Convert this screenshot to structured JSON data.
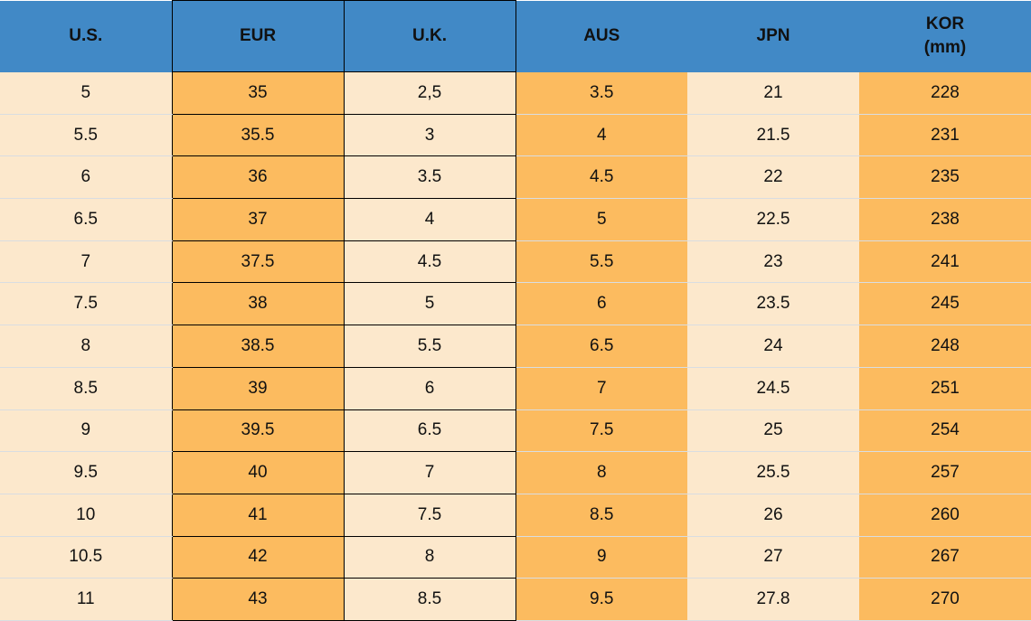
{
  "colors": {
    "header_bg": "#4189C6",
    "orange": "#FCBB5F",
    "cream": "#FCE8CC",
    "row_separator": "#D9DDE1",
    "grid_border": "#000000",
    "text": "#111111"
  },
  "chart_data": {
    "type": "table",
    "columns": [
      {
        "id": "us",
        "label": "U.S.",
        "sublabel": "",
        "tone": "cream",
        "bordered": false
      },
      {
        "id": "eur",
        "label": "EUR",
        "sublabel": "",
        "tone": "orange",
        "bordered": true
      },
      {
        "id": "uk",
        "label": "U.K.",
        "sublabel": "",
        "tone": "cream",
        "bordered": true
      },
      {
        "id": "aus",
        "label": "AUS",
        "sublabel": "",
        "tone": "orange",
        "bordered": false
      },
      {
        "id": "jpn",
        "label": "JPN",
        "sublabel": "",
        "tone": "cream",
        "bordered": false
      },
      {
        "id": "kor",
        "label": "KOR",
        "sublabel": "(mm)",
        "tone": "orange",
        "bordered": false
      }
    ],
    "rows": [
      [
        "5",
        "35",
        "2,5",
        "3.5",
        "21",
        "228"
      ],
      [
        "5.5",
        "35.5",
        "3",
        "4",
        "21.5",
        "231"
      ],
      [
        "6",
        "36",
        "3.5",
        "4.5",
        "22",
        "235"
      ],
      [
        "6.5",
        "37",
        "4",
        "5",
        "22.5",
        "238"
      ],
      [
        "7",
        "37.5",
        "4.5",
        "5.5",
        "23",
        "241"
      ],
      [
        "7.5",
        "38",
        "5",
        "6",
        "23.5",
        "245"
      ],
      [
        "8",
        "38.5",
        "5.5",
        "6.5",
        "24",
        "248"
      ],
      [
        "8.5",
        "39",
        "6",
        "7",
        "24.5",
        "251"
      ],
      [
        "9",
        "39.5",
        "6.5",
        "7.5",
        "25",
        "254"
      ],
      [
        "9.5",
        "40",
        "7",
        "8",
        "25.5",
        "257"
      ],
      [
        "10",
        "41",
        "7.5",
        "8.5",
        "26",
        "260"
      ],
      [
        "10.5",
        "42",
        "8",
        "9",
        "27",
        "267"
      ],
      [
        "11",
        "43",
        "8.5",
        "9.5",
        "27.8",
        "270"
      ]
    ]
  }
}
